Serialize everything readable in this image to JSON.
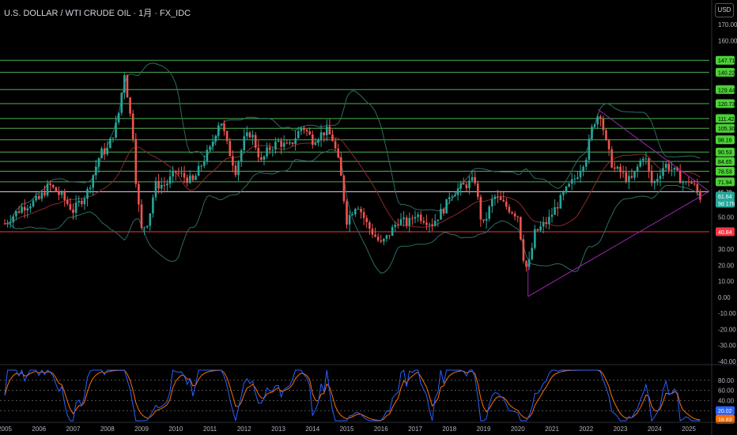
{
  "header": {
    "title": "U.S. DOLLAR / WTI CRUDE OIL · 1月 · FX_IDC",
    "currency": "USD"
  },
  "colors": {
    "up": "#26a69a",
    "down": "#ef5350",
    "hline": "#4caf50",
    "support": "#f23645",
    "trend": "#9c27b0",
    "ma": "#8b2a2a",
    "band": "#2e6b62",
    "k": "#2962ff",
    "d": "#ff6d00",
    "last": "#ffffff"
  },
  "chart_data": [
    {
      "type": "candlestick",
      "title": "U.S. DOLLAR / WTI CRUDE OIL",
      "interval": "1月",
      "source": "FX_IDC",
      "ylim": [
        -40,
        170
      ],
      "y_ticks": [
        170,
        160,
        150,
        140,
        130,
        120,
        110,
        100,
        90,
        80,
        70,
        60,
        50,
        40,
        30,
        20,
        10,
        0,
        -10,
        -20,
        -30,
        -40
      ],
      "x_ticks": [
        "2005",
        "2006",
        "2007",
        "2008",
        "2009",
        "2010",
        "2011",
        "2012",
        "2013",
        "2014",
        "2015",
        "2016",
        "2017",
        "2018",
        "2019",
        "2020",
        "2021",
        "2022",
        "2023",
        "2024",
        "2025"
      ],
      "horizontal_levels": [
        147.71,
        140.22,
        129.44,
        120.73,
        111.42,
        105.3,
        98.16,
        90.53,
        84.65,
        78.53,
        71.94
      ],
      "support_level": 40.84,
      "reference_level": 65.79,
      "last_price": 61.64,
      "countdown": "9d 17h",
      "series_close": [
        [
          2005,
          46
        ],
        [
          2005.5,
          56
        ],
        [
          2006,
          61
        ],
        [
          2006.3,
          70
        ],
        [
          2006.7,
          62
        ],
        [
          2007,
          54
        ],
        [
          2007.4,
          65
        ],
        [
          2007.8,
          90
        ],
        [
          2008,
          92
        ],
        [
          2008.3,
          110
        ],
        [
          2008.5,
          140
        ],
        [
          2008.6,
          124
        ],
        [
          2008.75,
          101
        ],
        [
          2008.85,
          68
        ],
        [
          2009,
          42
        ],
        [
          2009.2,
          48
        ],
        [
          2009.4,
          70
        ],
        [
          2009.7,
          70
        ],
        [
          2010,
          78
        ],
        [
          2010.5,
          72
        ],
        [
          2010.9,
          89
        ],
        [
          2011,
          92
        ],
        [
          2011.3,
          112
        ],
        [
          2011.5,
          95
        ],
        [
          2011.75,
          79
        ],
        [
          2012,
          98
        ],
        [
          2012.2,
          103
        ],
        [
          2012.5,
          84
        ],
        [
          2012.7,
          92
        ],
        [
          2013,
          97
        ],
        [
          2013.3,
          93
        ],
        [
          2013.7,
          107
        ],
        [
          2014,
          98
        ],
        [
          2014.4,
          104
        ],
        [
          2014.6,
          98
        ],
        [
          2014.8,
          80
        ],
        [
          2015,
          48
        ],
        [
          2015.3,
          59
        ],
        [
          2015.6,
          45
        ],
        [
          2016,
          33
        ],
        [
          2016.2,
          38
        ],
        [
          2016.5,
          48
        ],
        [
          2016.8,
          46
        ],
        [
          2017,
          52
        ],
        [
          2017.5,
          46
        ],
        [
          2017.9,
          57
        ],
        [
          2018,
          64
        ],
        [
          2018.3,
          68
        ],
        [
          2018.75,
          73
        ],
        [
          2018.9,
          51
        ],
        [
          2019,
          45
        ],
        [
          2019.3,
          63
        ],
        [
          2019.7,
          56
        ],
        [
          2020,
          51
        ],
        [
          2020.2,
          20
        ],
        [
          2020.3,
          18
        ],
        [
          2020.5,
          40
        ],
        [
          2020.9,
          48
        ],
        [
          2021,
          52
        ],
        [
          2021.4,
          66
        ],
        [
          2021.7,
          75
        ],
        [
          2022,
          88
        ],
        [
          2022.2,
          108
        ],
        [
          2022.4,
          116
        ],
        [
          2022.6,
          94
        ],
        [
          2022.8,
          80
        ],
        [
          2023,
          78
        ],
        [
          2023.3,
          72
        ],
        [
          2023.7,
          90
        ],
        [
          2023.9,
          71
        ],
        [
          2024,
          72
        ],
        [
          2024.3,
          83
        ],
        [
          2024.6,
          78
        ],
        [
          2024.9,
          70
        ],
        [
          2025,
          73
        ],
        [
          2025.2,
          68
        ],
        [
          2025.35,
          61.64
        ]
      ],
      "oscillator": {
        "levels": [
          80,
          60,
          40,
          20
        ],
        "k_last": 20.02,
        "d_last": 18.83
      }
    }
  ]
}
